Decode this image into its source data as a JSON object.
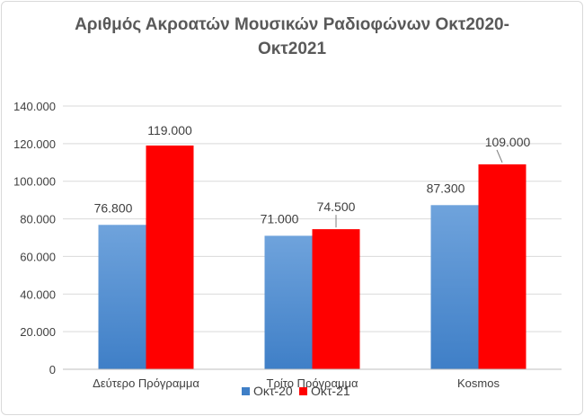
{
  "chart_data": {
    "type": "bar",
    "title_lines": [
      "Αριθμός Ακροατών Μουσικών Ραδιοφώνων Οκτ2020-",
      "Οκτ2021"
    ],
    "categories": [
      "Δεύτερο Πρόγραμμα",
      "Τρίτο Πρόγραμμα",
      "Kosmos"
    ],
    "series": [
      {
        "name": "Οκτ-20",
        "values": [
          76800,
          71000,
          87300
        ],
        "labels": [
          "76.800",
          "71.000",
          "87.300"
        ],
        "color_top": "#6fa3dc",
        "color_bottom": "#3f7fc7"
      },
      {
        "name": "Οκτ-21",
        "values": [
          119000,
          74500,
          109000
        ],
        "labels": [
          "119.000",
          "74.500",
          "109.000"
        ],
        "color_top": "#ff0000",
        "color_bottom": "#ff0000"
      }
    ],
    "ylim": [
      0,
      140000
    ],
    "yticks": [
      0,
      20000,
      40000,
      60000,
      80000,
      100000,
      120000,
      140000
    ],
    "ytick_labels": [
      "0",
      "20.000",
      "40.000",
      "60.000",
      "80.000",
      "100.000",
      "120.000",
      "140.000"
    ],
    "grid": true,
    "legend_position": "bottom",
    "xlabel": "",
    "ylabel": ""
  }
}
